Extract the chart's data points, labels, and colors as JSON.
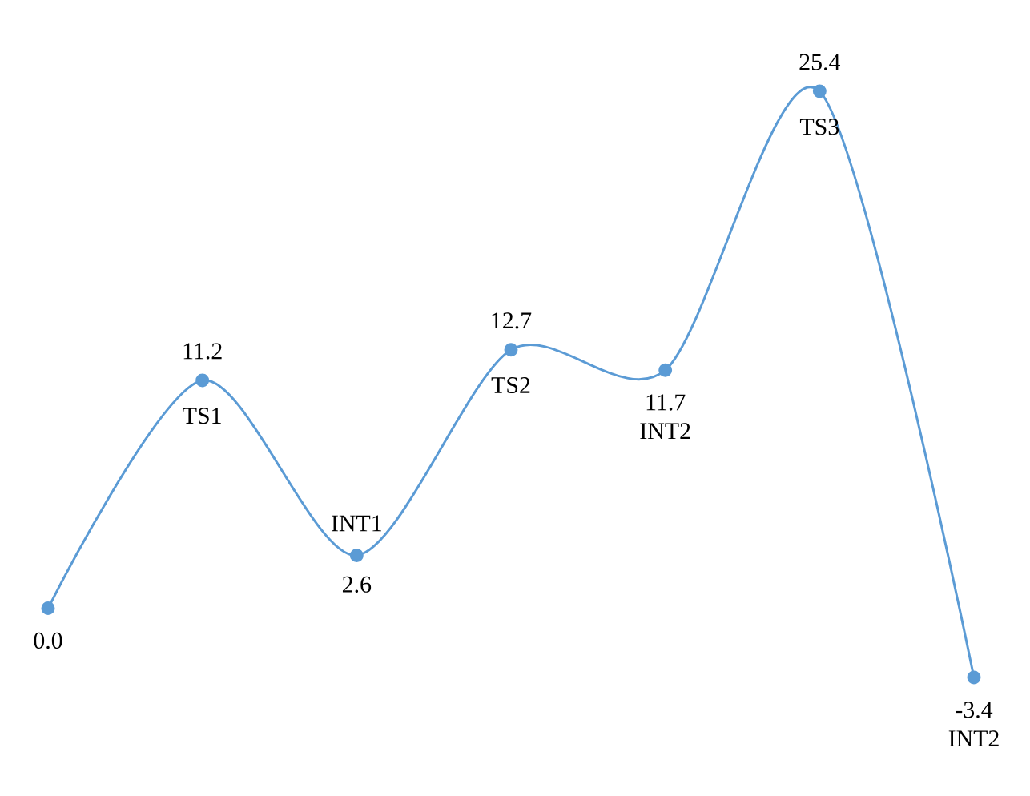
{
  "chart_data": {
    "type": "line",
    "categories": [
      null,
      "TS1",
      "INT1",
      "TS2",
      "INT2",
      "TS3",
      "INT2"
    ],
    "values": [
      0.0,
      11.2,
      2.6,
      12.7,
      11.7,
      25.4,
      -3.4
    ],
    "value_labels": [
      "0.0",
      "11.2",
      "2.6",
      "12.7",
      "11.7",
      "25.4",
      "-3.4"
    ],
    "color": "#5b9bd5",
    "marker": "circle"
  }
}
